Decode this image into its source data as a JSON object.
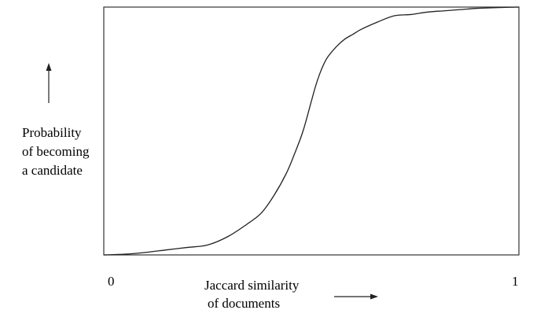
{
  "chart_data": {
    "type": "line",
    "title": "",
    "ylabel_lines": [
      "Probability",
      "of becoming",
      "a candidate"
    ],
    "xlabel_lines": [
      "Jaccard similarity",
      "of documents"
    ],
    "x_tick_labels": [
      "0",
      "1"
    ],
    "xlim": [
      0,
      1
    ],
    "ylim": [
      0,
      1
    ],
    "grid": false,
    "series": [
      {
        "x": [
          0.0,
          0.05,
          0.1,
          0.15,
          0.2,
          0.25,
          0.3,
          0.35,
          0.38,
          0.41,
          0.44,
          0.46,
          0.48,
          0.5,
          0.51,
          0.52,
          0.53,
          0.54,
          0.56,
          0.58,
          0.6,
          0.62,
          0.66,
          0.7,
          0.74,
          0.78,
          0.82,
          0.86,
          0.9,
          0.95,
          1.0
        ],
        "y": [
          0.0,
          0.003,
          0.01,
          0.02,
          0.03,
          0.04,
          0.075,
          0.13,
          0.17,
          0.24,
          0.33,
          0.41,
          0.5,
          0.62,
          0.68,
          0.73,
          0.77,
          0.8,
          0.84,
          0.87,
          0.89,
          0.91,
          0.94,
          0.965,
          0.97,
          0.98,
          0.985,
          0.99,
          0.995,
          0.998,
          1.0
        ]
      }
    ],
    "line_color": "#222222",
    "axis_color": "#333333"
  }
}
